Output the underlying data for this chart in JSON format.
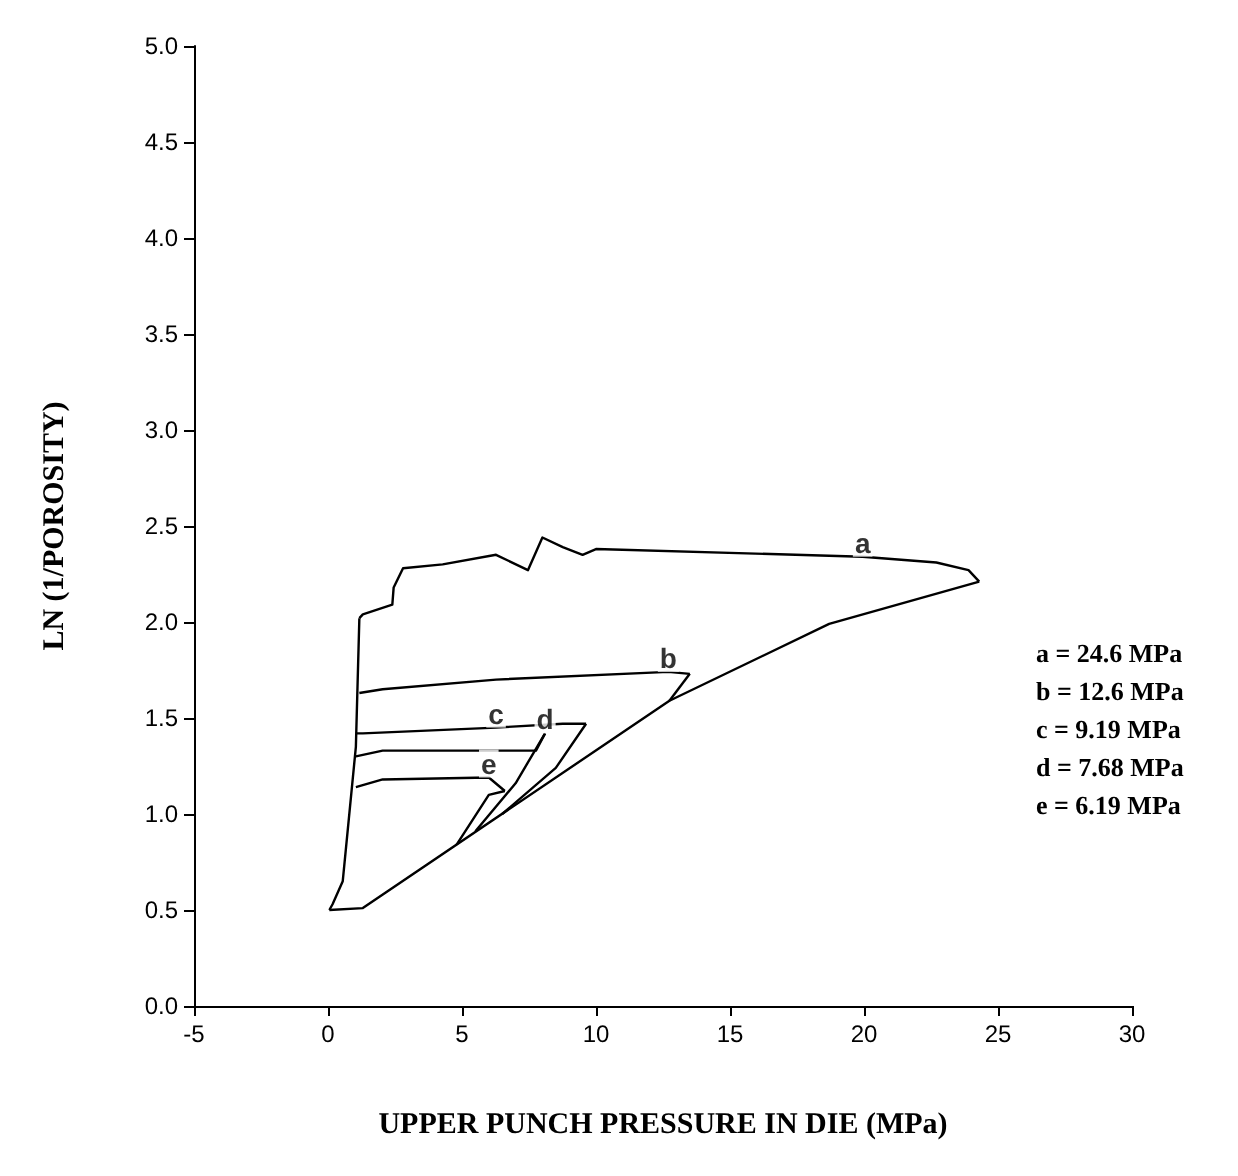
{
  "chart_data": {
    "type": "line",
    "xlabel": "UPPER PUNCH PRESSURE IN DIE (MPa)",
    "ylabel": "LN (1/POROSITY)",
    "xlim": [
      -5,
      30
    ],
    "xticks": [
      -5,
      0,
      5,
      10,
      15,
      20,
      25,
      30
    ],
    "ylim": [
      0,
      5
    ],
    "yticks": [
      {
        "value": 0,
        "label": "0.0"
      },
      0.5,
      {
        "value": 1,
        "label": "1.0"
      },
      1.5,
      {
        "value": 2,
        "label": "2.0"
      },
      2.5,
      {
        "value": 3,
        "label": "3.0"
      },
      3.5,
      {
        "value": 4,
        "label": "4.0"
      },
      4.5,
      {
        "value": 5,
        "label": "5.0"
      }
    ],
    "marker": "none",
    "line_style": "solid",
    "series": [
      {
        "color": "#000000",
        "x": [
          0.05,
          1.3,
          12.74,
          18.7,
          24.3
        ],
        "values": [
          0.5,
          0.51,
          1.59,
          1.99,
          2.21
        ]
      },
      {
        "color": "#000000",
        "x": [
          24.3,
          23.9,
          22.7,
          19.95,
          10,
          9.5,
          8.76,
          8.0,
          7.46,
          6.27,
          4.28,
          2.8,
          2.45,
          2.4,
          1.3,
          1.17
        ],
        "values": [
          2.21,
          2.27,
          2.31,
          2.34,
          2.38,
          2.35,
          2.39,
          2.44,
          2.27,
          2.35,
          2.3,
          2.28,
          2.18,
          2.09,
          2.04,
          2.02
        ]
      },
      {
        "color": "#000000",
        "x": [
          0.05,
          0.17,
          0.55,
          1.04,
          1.17
        ],
        "values": [
          0.5,
          0.53,
          0.65,
          1.35,
          2.02
        ]
      },
      {
        "color": "#000000",
        "x": [
          12.74,
          13.5
        ],
        "values": [
          1.59,
          1.73
        ]
      },
      {
        "color": "#000000",
        "x": [
          1.17,
          2.04,
          6.27,
          12.7,
          13.5
        ],
        "values": [
          1.63,
          1.65,
          1.7,
          1.74,
          1.73
        ]
      },
      {
        "color": "#000000",
        "x": [
          6.5,
          8.5,
          9.63
        ],
        "values": [
          1.0,
          1.24,
          1.47
        ]
      },
      {
        "color": "#000000",
        "x": [
          1.04,
          1.3,
          6.27,
          8.76,
          9.63
        ],
        "values": [
          1.42,
          1.42,
          1.45,
          1.47,
          1.47
        ]
      },
      {
        "color": "#000000",
        "x": [
          5.5,
          7.0,
          8.1
        ],
        "values": [
          0.91,
          1.16,
          1.42
        ]
      },
      {
        "color": "#000000",
        "x": [
          1.04,
          2.04,
          7.76,
          8.1
        ],
        "values": [
          1.3,
          1.33,
          1.33,
          1.42
        ]
      },
      {
        "color": "#000000",
        "x": [
          4.8,
          6.0,
          6.6
        ],
        "values": [
          0.84,
          1.1,
          1.12
        ]
      },
      {
        "color": "#000000",
        "x": [
          1.04,
          2.04,
          6.0,
          6.6
        ],
        "values": [
          1.14,
          1.18,
          1.19,
          1.12
        ]
      }
    ],
    "annotations": [
      {
        "text": "a",
        "x": 19.95,
        "y": 2.34
      },
      {
        "text": "b",
        "x": 12.7,
        "y": 1.74
      },
      {
        "text": "c",
        "x": 6.27,
        "y": 1.45
      },
      {
        "text": "d",
        "x": 8.1,
        "y": 1.42
      },
      {
        "text": "e",
        "x": 6.0,
        "y": 1.19
      },
      "a = 24.6 MPa",
      "b = 12.6 MPa",
      "c = 9.19 MPa",
      "d = 7.68 MPa",
      "e = 6.19 MPa"
    ]
  }
}
